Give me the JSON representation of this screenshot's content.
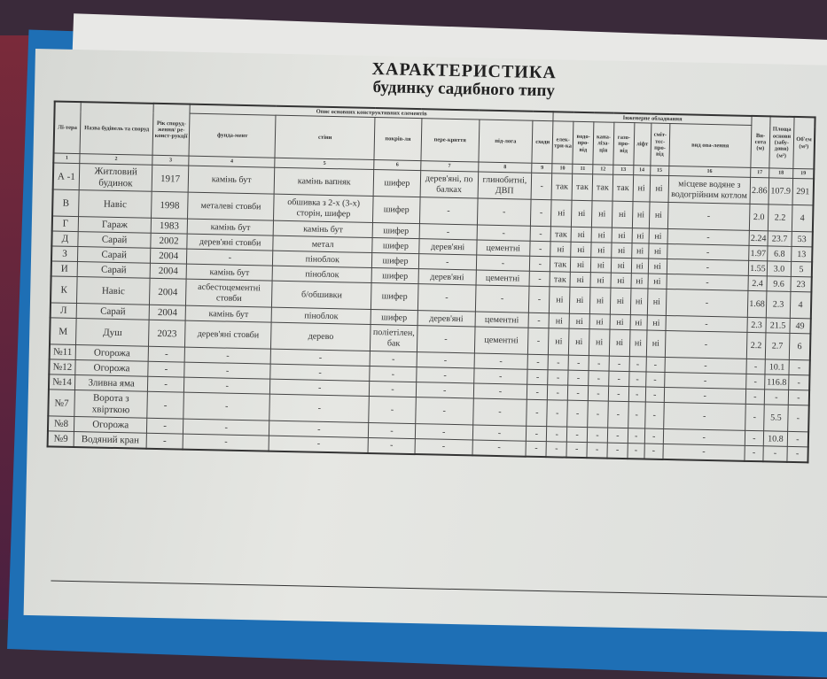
{
  "title": "ХАРАКТЕРИСТИКА",
  "subtitle": "будинку садибного типу",
  "headers": {
    "litera": "Лі-тера",
    "name": "Назва будівель та споруд",
    "year": "Рік споруд-ження/ ре-конст-рукції",
    "constructive": "Опис основних конструктивних елементів",
    "foundation": "фунда-мент",
    "walls": "стіни",
    "roof": "покрів-ля",
    "ceiling": "пере-криття",
    "floor": "під-лога",
    "stairs": "сходи",
    "engineering": "Інженерне обладнання",
    "electricity": "елек-три-ка",
    "water": "водо-про-від",
    "sewer": "кана-ліза-ція",
    "gas": "газо-про-від",
    "lift": "ліфт",
    "garbage": "сміт-тєс-про-від",
    "heating": "вид опа-лення",
    "height": "Ви-сота (м)",
    "area": "Площа основи (забу-дови) (м²)",
    "volume": "Об'єм (м³)",
    "numbers": [
      "1",
      "2",
      "3",
      "4",
      "5",
      "6",
      "7",
      "8",
      "9",
      "10",
      "11",
      "12",
      "13",
      "14",
      "15",
      "16",
      "17",
      "18",
      "19"
    ]
  },
  "rows": [
    [
      "А -1",
      "Житловий будинок",
      "1917",
      "камінь бут",
      "камінь вапняк",
      "шифер",
      "дерев'яні, по балках",
      "глинобитні, ДВП",
      "-",
      "так",
      "так",
      "так",
      "так",
      "ні",
      "ні",
      "місцеве водяне з водогрійним котлом",
      "2.86",
      "107.9",
      "291"
    ],
    [
      "В",
      "Навіс",
      "1998",
      "металеві стовби",
      "обшивка з 2-х (3-х) сторін, шифер",
      "шифер",
      "-",
      "-",
      "-",
      "ні",
      "ні",
      "ні",
      "ні",
      "ні",
      "ні",
      "-",
      "2.0",
      "2.2",
      "4"
    ],
    [
      "Г",
      "Гараж",
      "1983",
      "камінь бут",
      "камінь бут",
      "шифер",
      "-",
      "-",
      "-",
      "так",
      "ні",
      "ні",
      "ні",
      "ні",
      "ні",
      "-",
      "2.24",
      "23.7",
      "53"
    ],
    [
      "Д",
      "Сарай",
      "2002",
      "дерев'яні стовби",
      "метал",
      "шифер",
      "дерев'яні",
      "цементні",
      "-",
      "ні",
      "ні",
      "ні",
      "ні",
      "ні",
      "ні",
      "-",
      "1.97",
      "6.8",
      "13"
    ],
    [
      "З",
      "Сарай",
      "2004",
      "-",
      "піноблок",
      "шифер",
      "-",
      "-",
      "-",
      "так",
      "ні",
      "ні",
      "ні",
      "ні",
      "ні",
      "-",
      "1.55",
      "3.0",
      "5"
    ],
    [
      "И",
      "Сарай",
      "2004",
      "камінь бут",
      "піноблок",
      "шифер",
      "дерев'яні",
      "цементні",
      "-",
      "так",
      "ні",
      "ні",
      "ні",
      "ні",
      "ні",
      "-",
      "2.4",
      "9.6",
      "23"
    ],
    [
      "К",
      "Навіс",
      "2004",
      "асбестоцементні стовби",
      "б/обшивки",
      "шифер",
      "-",
      "-",
      "-",
      "ні",
      "ні",
      "ні",
      "ні",
      "ні",
      "ні",
      "-",
      "1.68",
      "2.3",
      "4"
    ],
    [
      "Л",
      "Сарай",
      "2004",
      "камінь бут",
      "піноблок",
      "шифер",
      "дерев'яні",
      "цементні",
      "-",
      "ні",
      "ні",
      "ні",
      "ні",
      "ні",
      "ні",
      "-",
      "2.3",
      "21.5",
      "49"
    ],
    [
      "М",
      "Душ",
      "2023",
      "дерев'яні стовби",
      "дерево",
      "поліетілен, бак",
      "-",
      "цементні",
      "-",
      "ні",
      "ні",
      "ні",
      "ні",
      "ні",
      "ні",
      "-",
      "2.2",
      "2.7",
      "6"
    ],
    [
      "№11",
      "Огорожа",
      "-",
      "-",
      "-",
      "-",
      "-",
      "-",
      "-",
      "-",
      "-",
      "-",
      "-",
      "-",
      "-",
      "-",
      "-",
      "10.1",
      "-"
    ],
    [
      "№12",
      "Огорожа",
      "-",
      "-",
      "-",
      "-",
      "-",
      "-",
      "-",
      "-",
      "-",
      "-",
      "-",
      "-",
      "-",
      "-",
      "-",
      "116.8",
      "-"
    ],
    [
      "№14",
      "Зливна яма",
      "-",
      "-",
      "-",
      "-",
      "-",
      "-",
      "-",
      "-",
      "-",
      "-",
      "-",
      "-",
      "-",
      "-",
      "-",
      "-",
      "-"
    ],
    [
      "№7",
      "Ворота з хвірткою",
      "-",
      "-",
      "-",
      "-",
      "-",
      "-",
      "-",
      "-",
      "-",
      "-",
      "-",
      "-",
      "-",
      "-",
      "-",
      "5.5",
      "-"
    ],
    [
      "№8",
      "Огорожа",
      "-",
      "-",
      "-",
      "-",
      "-",
      "-",
      "-",
      "-",
      "-",
      "-",
      "-",
      "-",
      "-",
      "-",
      "-",
      "10.8",
      "-"
    ],
    [
      "№9",
      "Водяний кран",
      "-",
      "-",
      "-",
      "-",
      "-",
      "-",
      "-",
      "-",
      "-",
      "-",
      "-",
      "-",
      "-",
      "-",
      "-",
      "-",
      "-"
    ]
  ]
}
